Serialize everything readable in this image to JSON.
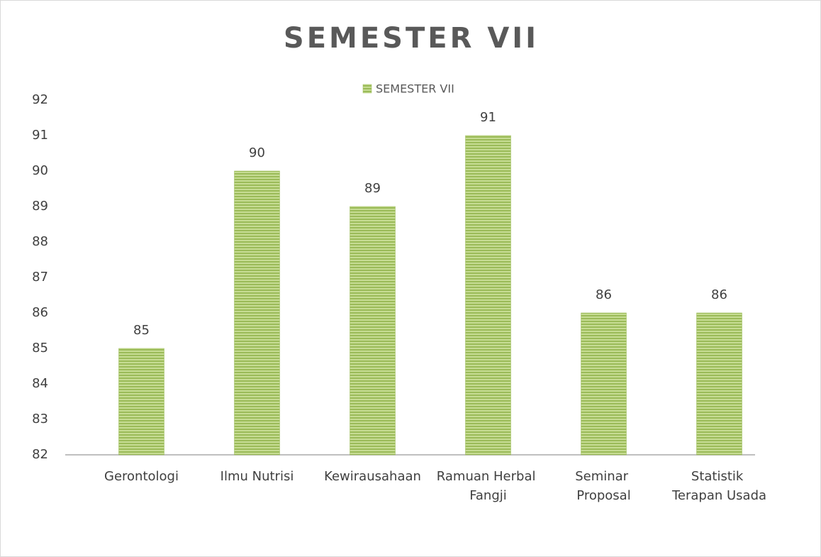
{
  "chart_data": {
    "type": "bar",
    "title": "SEMESTER VII",
    "categories": [
      "Gerontologi",
      "Ilmu Nutrisi",
      "Kewirausahaan",
      "Ramuan Herbal Fangji",
      "Seminar Proposal",
      "Statistik Terapan Usada"
    ],
    "series": [
      {
        "name": "SEMESTER VII",
        "color": "#9bbb59",
        "values": [
          85,
          90,
          89,
          91,
          86,
          86
        ]
      }
    ],
    "ylim": [
      82,
      92
    ],
    "yticks": [
      82,
      83,
      84,
      85,
      86,
      87,
      88,
      89,
      90,
      91,
      92
    ],
    "grid": false,
    "legend": "top"
  }
}
